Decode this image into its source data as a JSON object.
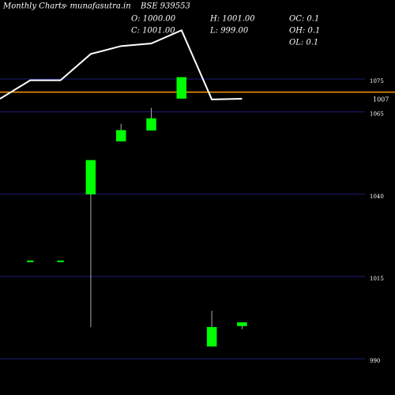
{
  "chart_data": {
    "type": "candlestick",
    "header": {
      "title": "Monthly Charts",
      "site": "- munafasutra.in",
      "symbol": "BSE 939553",
      "open": "O: 1000.00",
      "close": "C: 1001.00",
      "high": "H: 1001.00",
      "low": "L: 999.00",
      "oc": "OC: 0.1",
      "oh": "OH: 0.1",
      "ol": "OL: 0.1"
    },
    "categories": [
      null,
      null,
      null,
      null,
      null,
      null,
      null,
      null,
      null
    ],
    "open": [
      null,
      1019.8,
      1019.8,
      1040,
      1056.1,
      1059.4,
      1069.1,
      993.8,
      1000
    ],
    "high": [
      null,
      1019.8,
      1019.8,
      1050.3,
      1061.4,
      1066.2,
      1075.5,
      1004.6,
      1001
    ],
    "low": [
      null,
      1019.8,
      1019.8,
      999.6,
      1056.1,
      1059.4,
      1069.1,
      993.8,
      999
    ],
    "close": [
      null,
      1019.8,
      1019.8,
      1050.3,
      1059.4,
      1063.0,
      1075.5,
      999.6,
      1001
    ],
    "color": "#00ff00",
    "ylim": [
      979,
      1099
    ],
    "yticks": [
      990,
      1015,
      1040,
      1065,
      1075
    ],
    "line": {
      "color": "#ffffff",
      "axis": "y2",
      "values": [
        1006,
        1008.8,
        1008.8,
        1012.8,
        1014,
        1014.4,
        1016.4,
        1005.9,
        1006
      ]
    },
    "y2lim": [
      961,
      1021
    ],
    "ref_line": {
      "value": 1007,
      "label": "1007",
      "color": "#ff9900",
      "axis": "y2"
    },
    "grid": true
  }
}
